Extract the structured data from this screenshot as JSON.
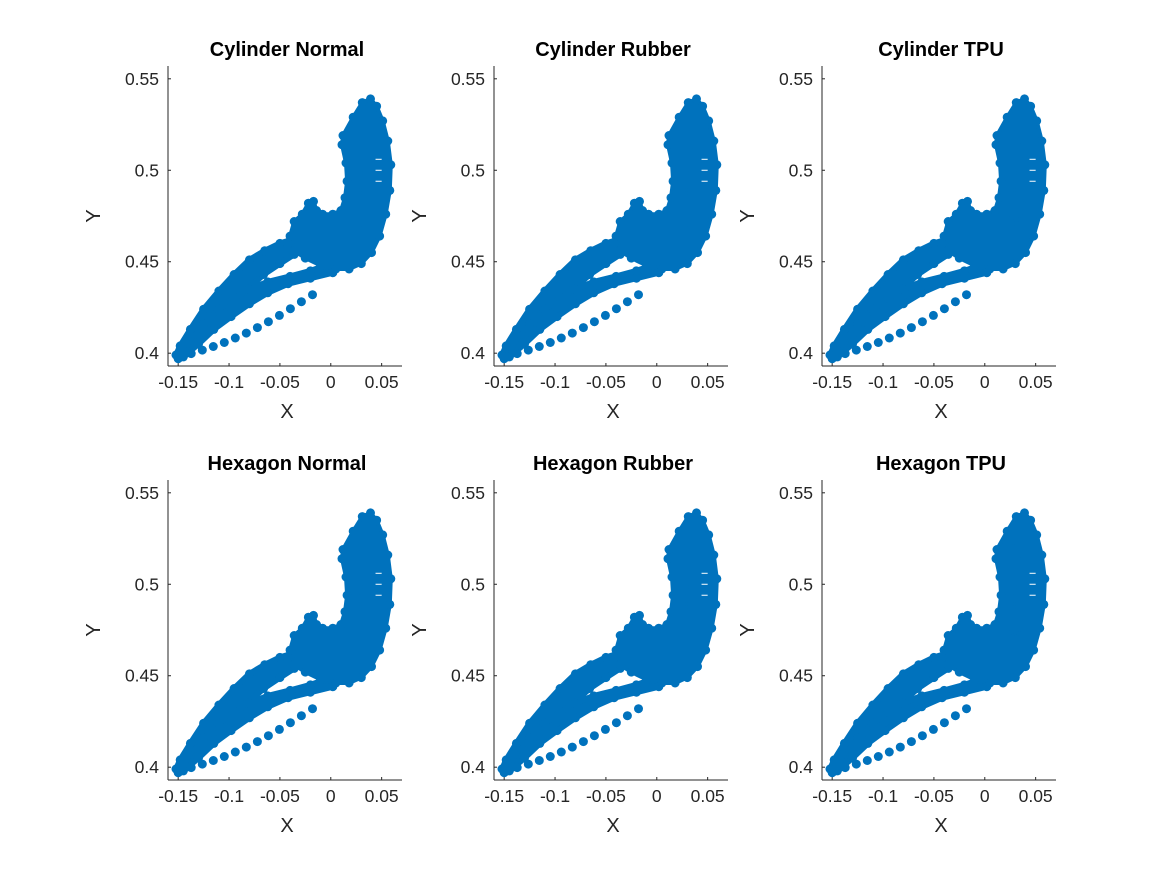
{
  "chart_data": [
    {
      "type": "scatter",
      "title": "Cylinder Normal",
      "xlabel": "X",
      "ylabel": "Y",
      "xlim": [
        -0.16,
        0.07
      ],
      "ylim": [
        0.393,
        0.557
      ],
      "xticks": [
        -0.15,
        -0.1,
        -0.05,
        0,
        0.05
      ],
      "xtick_labels": [
        "-0.15",
        "-0.1",
        "-0.05",
        "0",
        "0.05"
      ],
      "yticks": [
        0.4,
        0.45,
        0.5,
        0.55
      ],
      "ytick_labels": [
        "0.4",
        "0.45",
        "0.5",
        "0.55"
      ],
      "grid": false,
      "series": [
        {
          "color": "#0072BD",
          "marker": "circle-filled"
        }
      ]
    },
    {
      "type": "scatter",
      "title": "Cylinder Rubber",
      "xlabel": "X",
      "ylabel": "Y",
      "xlim": [
        -0.16,
        0.07
      ],
      "ylim": [
        0.393,
        0.557
      ],
      "xticks": [
        -0.15,
        -0.1,
        -0.05,
        0,
        0.05
      ],
      "xtick_labels": [
        "-0.15",
        "-0.1",
        "-0.05",
        "0",
        "0.05"
      ],
      "yticks": [
        0.4,
        0.45,
        0.5,
        0.55
      ],
      "ytick_labels": [
        "0.4",
        "0.45",
        "0.5",
        "0.55"
      ],
      "grid": false,
      "series": [
        {
          "color": "#0072BD",
          "marker": "circle-filled"
        }
      ]
    },
    {
      "type": "scatter",
      "title": "Cylinder TPU",
      "xlabel": "X",
      "ylabel": "Y",
      "xlim": [
        -0.16,
        0.07
      ],
      "ylim": [
        0.393,
        0.557
      ],
      "xticks": [
        -0.15,
        -0.1,
        -0.05,
        0,
        0.05
      ],
      "xtick_labels": [
        "-0.15",
        "-0.1",
        "-0.05",
        "0",
        "0.05"
      ],
      "yticks": [
        0.4,
        0.45,
        0.5,
        0.55
      ],
      "ytick_labels": [
        "0.4",
        "0.45",
        "0.5",
        "0.55"
      ],
      "grid": false,
      "series": [
        {
          "color": "#0072BD",
          "marker": "circle-filled"
        }
      ]
    },
    {
      "type": "scatter",
      "title": "Hexagon Normal",
      "xlabel": "X",
      "ylabel": "Y",
      "xlim": [
        -0.16,
        0.07
      ],
      "ylim": [
        0.393,
        0.557
      ],
      "xticks": [
        -0.15,
        -0.1,
        -0.05,
        0,
        0.05
      ],
      "xtick_labels": [
        "-0.15",
        "-0.1",
        "-0.05",
        "0",
        "0.05"
      ],
      "yticks": [
        0.4,
        0.45,
        0.5,
        0.55
      ],
      "ytick_labels": [
        "0.4",
        "0.45",
        "0.5",
        "0.55"
      ],
      "grid": false,
      "series": [
        {
          "color": "#0072BD",
          "marker": "circle-filled"
        }
      ]
    },
    {
      "type": "scatter",
      "title": "Hexagon Rubber",
      "xlabel": "X",
      "ylabel": "Y",
      "xlim": [
        -0.16,
        0.07
      ],
      "ylim": [
        0.393,
        0.557
      ],
      "xticks": [
        -0.15,
        -0.1,
        -0.05,
        0,
        0.05
      ],
      "xtick_labels": [
        "-0.15",
        "-0.1",
        "-0.05",
        "0",
        "0.05"
      ],
      "yticks": [
        0.4,
        0.45,
        0.5,
        0.55
      ],
      "ytick_labels": [
        "0.4",
        "0.45",
        "0.5",
        "0.55"
      ],
      "grid": false,
      "series": [
        {
          "color": "#0072BD",
          "marker": "circle-filled"
        }
      ]
    },
    {
      "type": "scatter",
      "title": "Hexagon TPU",
      "xlabel": "X",
      "ylabel": "Y",
      "xlim": [
        -0.16,
        0.07
      ],
      "ylim": [
        0.393,
        0.557
      ],
      "xticks": [
        -0.15,
        -0.1,
        -0.05,
        0,
        0.05
      ],
      "xtick_labels": [
        "-0.15",
        "-0.1",
        "-0.05",
        "0",
        "0.05"
      ],
      "yticks": [
        0.4,
        0.45,
        0.5,
        0.55
      ],
      "ytick_labels": [
        "0.4",
        "0.45",
        "0.5",
        "0.55"
      ],
      "grid": false,
      "series": [
        {
          "color": "#0072BD",
          "marker": "circle-filled"
        }
      ]
    }
  ]
}
